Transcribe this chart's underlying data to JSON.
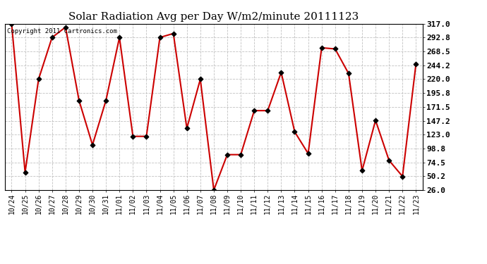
{
  "title": "Solar Radiation Avg per Day W/m2/minute 20111123",
  "copyright_text": "Copyright 2011 Cartronics.com",
  "labels": [
    "10/24",
    "10/25",
    "10/26",
    "10/27",
    "10/28",
    "10/29",
    "10/30",
    "10/31",
    "11/01",
    "11/02",
    "11/03",
    "11/04",
    "11/05",
    "11/06",
    "11/07",
    "11/08",
    "11/09",
    "11/10",
    "11/11",
    "11/12",
    "11/13",
    "11/14",
    "11/15",
    "11/16",
    "11/17",
    "11/18",
    "11/19",
    "11/20",
    "11/21",
    "11/22",
    "11/23"
  ],
  "values": [
    317.0,
    57.0,
    220.0,
    293.0,
    311.0,
    183.0,
    105.0,
    183.0,
    293.0,
    120.0,
    120.0,
    293.0,
    300.0,
    134.0,
    220.0,
    26.0,
    88.0,
    88.0,
    165.0,
    165.0,
    232.0,
    128.0,
    90.0,
    275.0,
    273.0,
    230.0,
    60.0,
    148.0,
    78.0,
    50.0,
    247.0
  ],
  "yticks": [
    26.0,
    50.2,
    74.5,
    98.8,
    123.0,
    147.2,
    171.5,
    195.8,
    220.0,
    244.2,
    268.5,
    292.8,
    317.0
  ],
  "ylim": [
    26.0,
    317.0
  ],
  "line_color": "#cc0000",
  "marker_color": "#000000",
  "bg_color": "#ffffff",
  "grid_color": "#bbbbbb",
  "title_fontsize": 11,
  "copyright_fontsize": 6.5,
  "tick_fontsize": 7,
  "ytick_fontsize": 8
}
